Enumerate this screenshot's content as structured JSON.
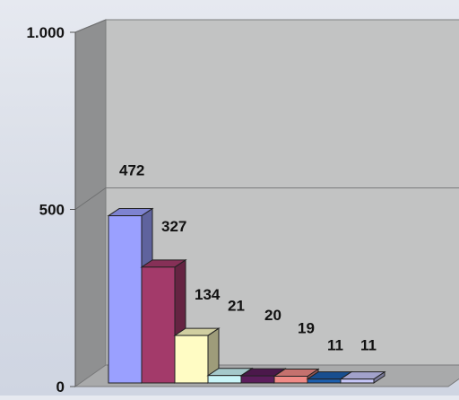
{
  "chart_data": {
    "type": "bar",
    "title": "",
    "xlabel": "",
    "ylabel": "",
    "ylim": [
      0,
      1000
    ],
    "y_ticks": [
      {
        "value": 0,
        "label": "0"
      },
      {
        "value": 500,
        "label": "500"
      },
      {
        "value": 1000,
        "label": "1.000"
      }
    ],
    "grid": true,
    "three_d": true,
    "values": [
      472,
      327,
      134,
      21,
      20,
      19,
      11,
      11
    ],
    "value_labels": [
      "472",
      "327",
      "134",
      "21",
      "20",
      "19",
      "11",
      "11"
    ],
    "colors": [
      "#9aa0ff",
      "#a33a6a",
      "#fffcc4",
      "#c9f5f8",
      "#5b1d5c",
      "#f08a86",
      "#1d5fae",
      "#c6c6f7"
    ]
  }
}
